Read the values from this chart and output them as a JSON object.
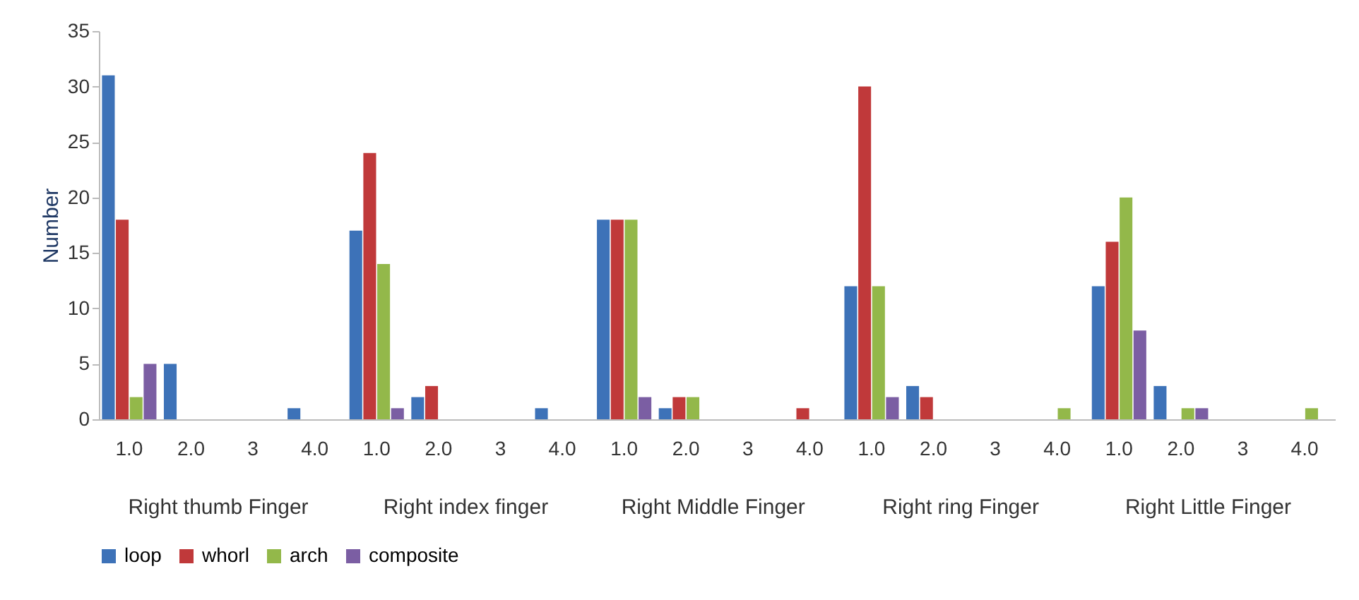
{
  "chart_data": {
    "type": "bar",
    "ylabel": "Number",
    "categories": [
      "1.0",
      "2.0",
      "3",
      "4.0",
      "1.0",
      "2.0",
      "3",
      "4.0",
      "1.0",
      "2.0",
      "3",
      "4.0",
      "1.0",
      "2.0",
      "3",
      "4.0",
      "1.0",
      "2.0",
      "3",
      "4.0"
    ],
    "annotations": [
      "Right thumb Finger",
      "Right index finger",
      "Right Middle Finger",
      "Right ring Finger",
      "Right Little Finger"
    ],
    "series": [
      {
        "name": "loop",
        "color": "#3d72b8",
        "values": [
          31,
          5,
          0,
          1,
          17,
          2,
          0,
          1,
          18,
          1,
          0,
          0,
          12,
          3,
          0,
          0,
          12,
          3,
          0,
          0
        ]
      },
      {
        "name": "whorl",
        "color": "#c0393a",
        "values": [
          18,
          0,
          0,
          0,
          24,
          3,
          0,
          0,
          18,
          2,
          0,
          1,
          30,
          2,
          0,
          0,
          16,
          0,
          0,
          0
        ]
      },
      {
        "name": "arch",
        "color": "#93b84a",
        "values": [
          2,
          0,
          0,
          0,
          14,
          0,
          0,
          0,
          18,
          2,
          0,
          0,
          12,
          0,
          0,
          1,
          20,
          1,
          0,
          1
        ]
      },
      {
        "name": "composite",
        "color": "#7b5ea3",
        "values": [
          5,
          0,
          0,
          0,
          1,
          0,
          0,
          0,
          2,
          0,
          0,
          0,
          2,
          0,
          0,
          0,
          8,
          1,
          0,
          0
        ]
      }
    ],
    "ylim": [
      0,
      35
    ],
    "yticks": [
      0,
      5,
      10,
      15,
      20,
      25,
      30,
      35
    ],
    "grid": false,
    "legend": "bottom"
  }
}
